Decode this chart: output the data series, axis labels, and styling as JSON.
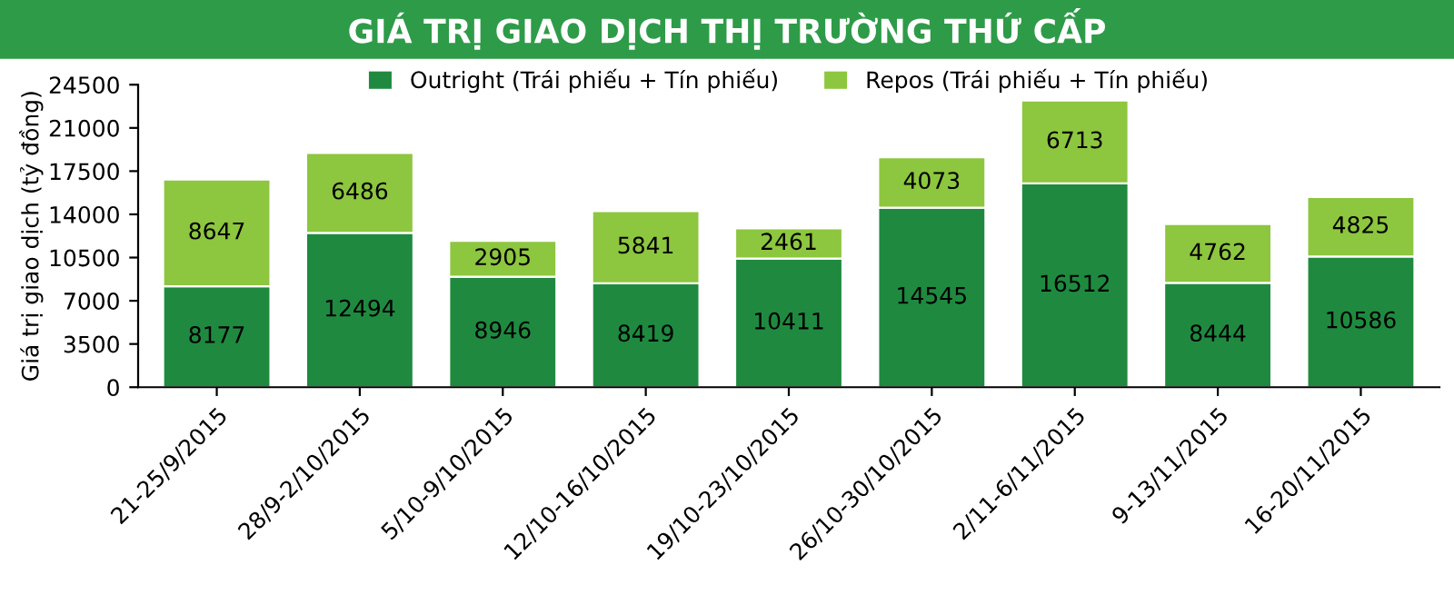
{
  "chart_data": {
    "type": "bar",
    "stacked": true,
    "title": "GIÁ TRỊ GIAO DỊCH THỊ TRƯỜNG THỨ CẤP",
    "ylabel": "Giá trị giao dịch (tỷ đồng)",
    "categories": [
      "21-25/9/2015",
      "28/9-2/10/2015",
      "5/10-9/10/2015",
      "12/10-16/10/2015",
      "19/10-23/10/2015",
      "26/10-30/10/2015",
      "2/11-6/11/2015",
      "9-13/11/2015",
      "16-20/11/2015"
    ],
    "series": [
      {
        "name": "Outright (Trái phiếu + Tín phiếu)",
        "color": "#1f8a3f",
        "values": [
          8177,
          12494,
          8946,
          8419,
          10411,
          14545,
          16512,
          8444,
          10586
        ]
      },
      {
        "name": "Repos (Trái phiếu + Tín phiếu)",
        "color": "#8dc63f",
        "values": [
          8647,
          6486,
          2905,
          5841,
          2461,
          4073,
          6713,
          4762,
          4825
        ]
      }
    ],
    "ylim": [
      0,
      24500
    ],
    "yticks": [
      0,
      3500,
      7000,
      10500,
      14000,
      17500,
      21000,
      24500
    ],
    "data_labels": true,
    "legend": "top",
    "grid": false
  }
}
